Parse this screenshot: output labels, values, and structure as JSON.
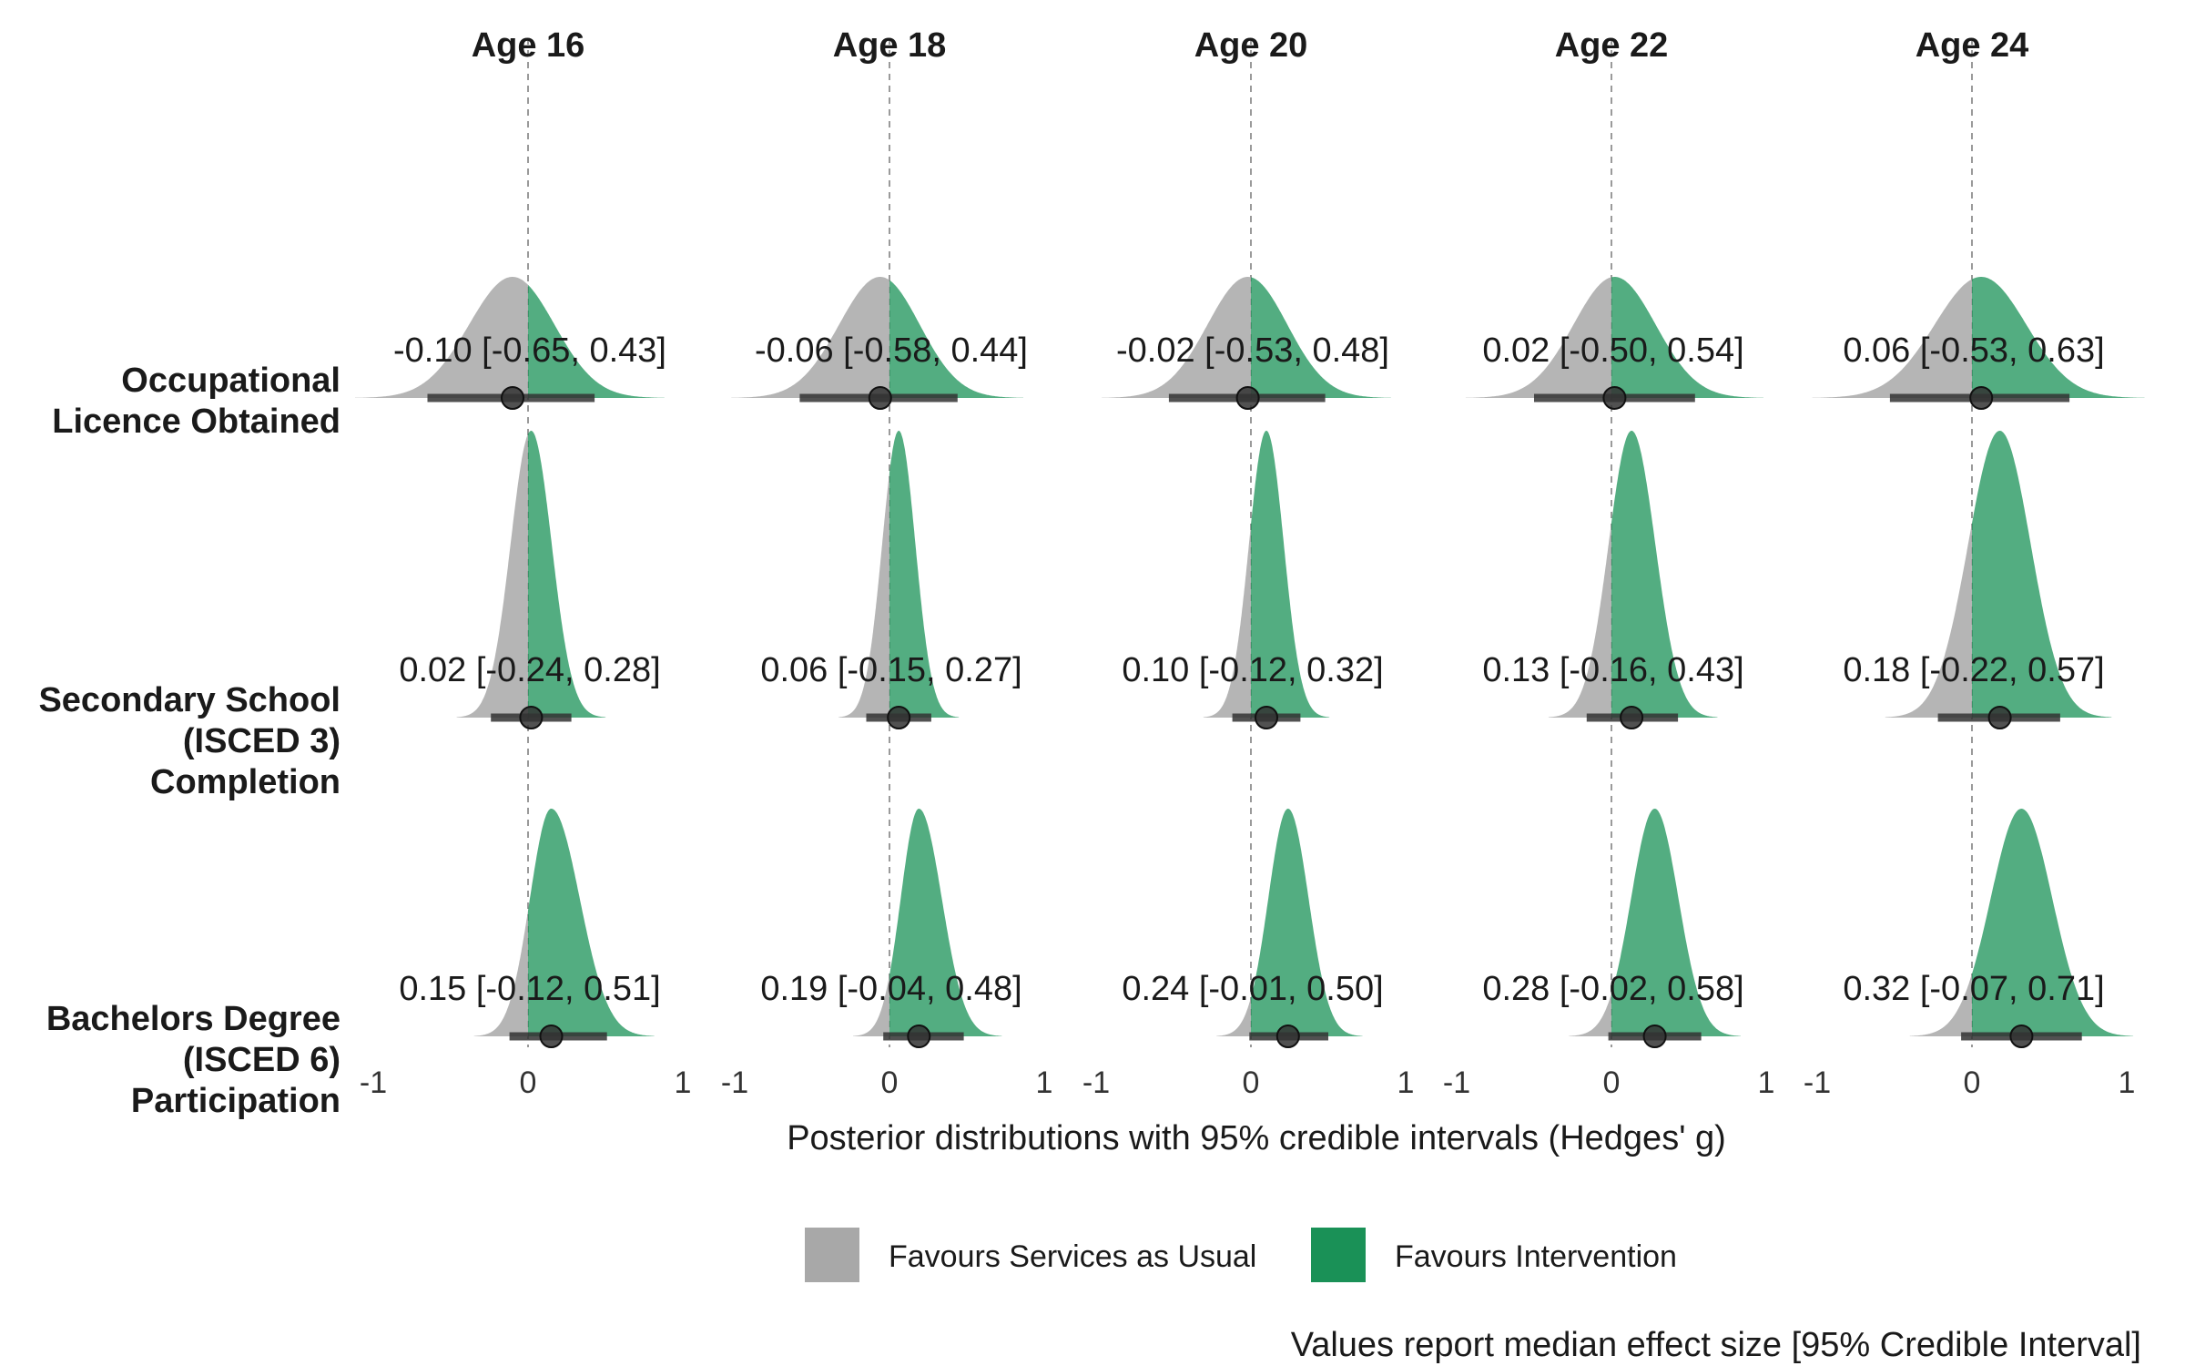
{
  "colors": {
    "negative": "#a8a8a8",
    "positive": "#1a9157",
    "interval": "#333333",
    "reference_line": "#9a9a9a"
  },
  "chart_data": {
    "type": "density-interval",
    "xlabel": "Posterior distributions with 95% credible intervals (Hedges' g)",
    "x_ticks": [
      "-1",
      "0",
      "1"
    ],
    "xlim": [
      -1,
      1
    ],
    "reference_value": 0,
    "facets": [
      "Age 16",
      "Age 18",
      "Age 20",
      "Age 22",
      "Age 24"
    ],
    "rows": [
      {
        "label_lines": [
          "Occupational",
          "Licence Obtained"
        ]
      },
      {
        "label_lines": [
          "Secondary School",
          "(ISCED 3)",
          "Completion"
        ]
      },
      {
        "label_lines": [
          "Bachelors Degree",
          "(ISCED 6)",
          "Participation"
        ]
      }
    ],
    "estimates": [
      [
        {
          "median": -0.1,
          "lower": -0.65,
          "upper": 0.43,
          "label": "-0.10 [-0.65, 0.43]"
        },
        {
          "median": -0.06,
          "lower": -0.58,
          "upper": 0.44,
          "label": "-0.06 [-0.58, 0.44]"
        },
        {
          "median": -0.02,
          "lower": -0.53,
          "upper": 0.48,
          "label": "-0.02 [-0.53, 0.48]"
        },
        {
          "median": 0.02,
          "lower": -0.5,
          "upper": 0.54,
          "label": "0.02 [-0.50, 0.54]"
        },
        {
          "median": 0.06,
          "lower": -0.53,
          "upper": 0.63,
          "label": "0.06 [-0.53, 0.63]"
        }
      ],
      [
        {
          "median": 0.02,
          "lower": -0.24,
          "upper": 0.28,
          "label": "0.02 [-0.24, 0.28]"
        },
        {
          "median": 0.06,
          "lower": -0.15,
          "upper": 0.27,
          "label": "0.06 [-0.15, 0.27]"
        },
        {
          "median": 0.1,
          "lower": -0.12,
          "upper": 0.32,
          "label": "0.10 [-0.12, 0.32]"
        },
        {
          "median": 0.13,
          "lower": -0.16,
          "upper": 0.43,
          "label": "0.13 [-0.16, 0.43]"
        },
        {
          "median": 0.18,
          "lower": -0.22,
          "upper": 0.57,
          "label": "0.18 [-0.22, 0.57]"
        }
      ],
      [
        {
          "median": 0.15,
          "lower": -0.12,
          "upper": 0.51,
          "label": "0.15 [-0.12, 0.51]"
        },
        {
          "median": 0.19,
          "lower": -0.04,
          "upper": 0.48,
          "label": "0.19 [-0.04, 0.48]"
        },
        {
          "median": 0.24,
          "lower": -0.01,
          "upper": 0.5,
          "label": "0.24 [-0.01, 0.50]"
        },
        {
          "median": 0.28,
          "lower": -0.02,
          "upper": 0.58,
          "label": "0.28 [-0.02, 0.58]"
        },
        {
          "median": 0.32,
          "lower": -0.07,
          "upper": 0.71,
          "label": "0.32 [-0.07, 0.71]"
        }
      ]
    ],
    "legend": [
      {
        "label": "Favours Services as Usual",
        "color": "#a8a8a8"
      },
      {
        "label": "Favours Intervention",
        "color": "#1a9157"
      }
    ],
    "legend_position": "bottom",
    "caption": "Values report median effect size [95% Credible Interval]"
  }
}
